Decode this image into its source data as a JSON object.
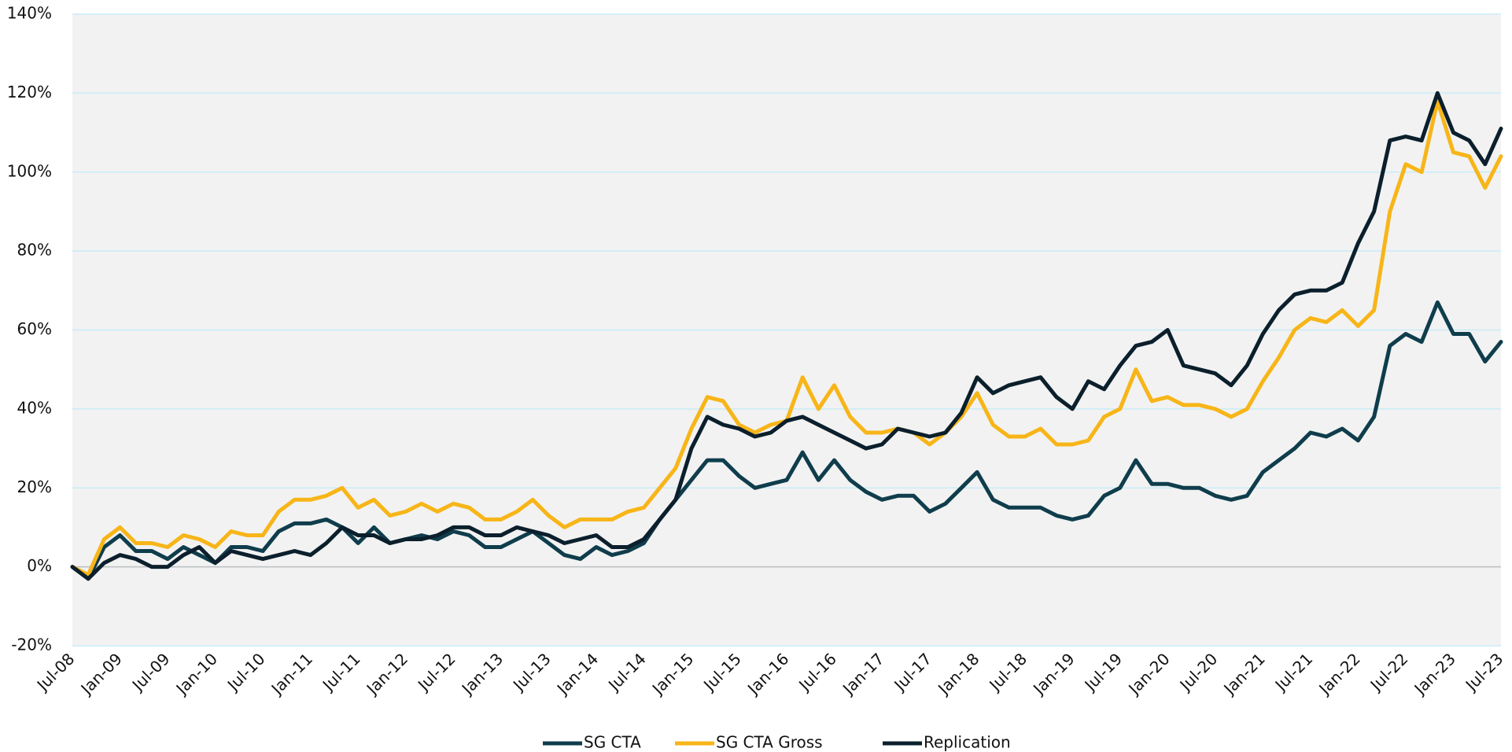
{
  "chart_data": {
    "type": "line",
    "categories": [
      "Jul-08",
      null,
      null,
      "Jan-09",
      null,
      null,
      "Jul-09",
      null,
      null,
      "Jan-10",
      null,
      null,
      "Jul-10",
      null,
      null,
      "Jan-11",
      null,
      null,
      "Jul-11",
      null,
      null,
      "Jan-12",
      null,
      null,
      "Jul-12",
      null,
      null,
      "Jan-13",
      null,
      null,
      "Jul-13",
      null,
      null,
      "Jan-14",
      null,
      null,
      "Jul-14",
      null,
      null,
      "Jan-15",
      null,
      null,
      "Jul-15",
      null,
      null,
      "Jan-16",
      null,
      null,
      "Jul-16",
      null,
      null,
      "Jan-17",
      null,
      null,
      "Jul-17",
      null,
      null,
      "Jan-18",
      null,
      null,
      "Jul-18",
      null,
      null,
      "Jan-19",
      null,
      null,
      "Jul-19",
      null,
      null,
      "Jan-20",
      null,
      null,
      "Jul-20",
      null,
      null,
      "Jan-21",
      null,
      null,
      "Jul-21",
      null,
      null,
      "Jan-22",
      null,
      null,
      "Jul-22",
      null,
      null,
      "Jan-23",
      null,
      null,
      "Jul-23"
    ],
    "series": [
      {
        "name": "SG CTA",
        "color": "#0f3d4c",
        "values": [
          0,
          -3,
          5,
          8,
          4,
          4,
          2,
          5,
          3,
          1,
          5,
          5,
          4,
          9,
          11,
          11,
          12,
          10,
          6,
          10,
          6,
          7,
          8,
          7,
          9,
          8,
          5,
          5,
          7,
          9,
          6,
          3,
          2,
          5,
          3,
          4,
          6,
          12,
          17,
          22,
          27,
          27,
          23,
          20,
          21,
          22,
          29,
          22,
          27,
          22,
          19,
          17,
          18,
          18,
          14,
          16,
          20,
          24,
          17,
          15,
          15,
          15,
          13,
          12,
          13,
          18,
          20,
          27,
          21,
          21,
          20,
          20,
          18,
          17,
          18,
          24,
          27,
          30,
          34,
          33,
          35,
          32,
          38,
          56,
          59,
          57,
          67,
          59,
          59,
          52,
          57
        ]
      },
      {
        "name": "SG CTA Gross",
        "color": "#f7b518",
        "values": [
          0,
          -2,
          7,
          10,
          6,
          6,
          5,
          8,
          7,
          5,
          9,
          8,
          8,
          14,
          17,
          17,
          18,
          20,
          15,
          17,
          13,
          14,
          16,
          14,
          16,
          15,
          12,
          12,
          14,
          17,
          13,
          10,
          12,
          12,
          12,
          14,
          15,
          20,
          25,
          35,
          43,
          42,
          36,
          34,
          36,
          37,
          48,
          40,
          46,
          38,
          34,
          34,
          35,
          34,
          31,
          34,
          38,
          44,
          36,
          33,
          33,
          35,
          31,
          31,
          32,
          38,
          40,
          50,
          42,
          43,
          41,
          41,
          40,
          38,
          40,
          47,
          53,
          60,
          63,
          62,
          65,
          61,
          65,
          90,
          102,
          100,
          118,
          105,
          104,
          96,
          104
        ]
      },
      {
        "name": "Replication",
        "color": "#0b1f2c",
        "values": [
          0,
          -3,
          1,
          3,
          2,
          0,
          0,
          3,
          5,
          1,
          4,
          3,
          2,
          3,
          4,
          3,
          6,
          10,
          8,
          8,
          6,
          7,
          7,
          8,
          10,
          10,
          8,
          8,
          10,
          9,
          8,
          6,
          7,
          8,
          5,
          5,
          7,
          12,
          17,
          30,
          38,
          36,
          35,
          33,
          34,
          37,
          38,
          36,
          34,
          32,
          30,
          31,
          35,
          34,
          33,
          34,
          39,
          48,
          44,
          46,
          47,
          48,
          43,
          40,
          47,
          45,
          51,
          56,
          57,
          60,
          51,
          50,
          49,
          46,
          51,
          59,
          65,
          69,
          70,
          70,
          72,
          82,
          90,
          108,
          109,
          108,
          120,
          110,
          108,
          102,
          111
        ]
      }
    ],
    "ylim": [
      -20,
      140
    ],
    "yticks": [
      {
        "value": -20,
        "label": "-20%"
      },
      {
        "value": 0,
        "label": "0%"
      },
      {
        "value": 20,
        "label": "20%"
      },
      {
        "value": 40,
        "label": "40%"
      },
      {
        "value": 60,
        "label": "60%"
      },
      {
        "value": 80,
        "label": "80%"
      },
      {
        "value": 100,
        "label": "100%"
      },
      {
        "value": 120,
        "label": "120%"
      },
      {
        "value": 140,
        "label": "140%"
      }
    ],
    "grid": true
  }
}
